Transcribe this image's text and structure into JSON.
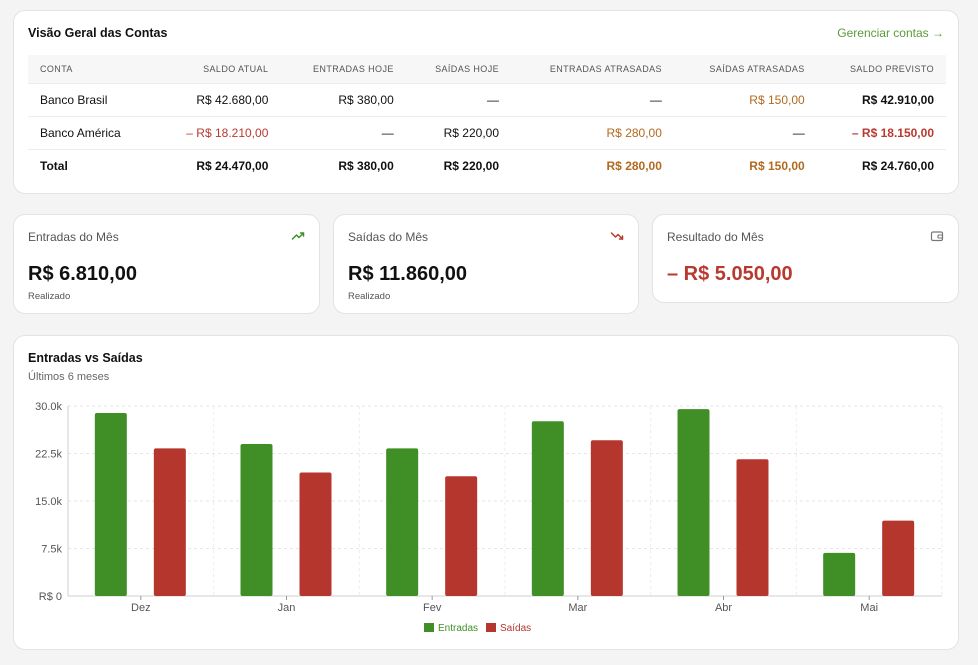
{
  "accounts": {
    "title": "Visão Geral das Contas",
    "manage_link": "Gerenciar contas →",
    "columns": [
      "CONTA",
      "SALDO ATUAL",
      "ENTRADAS HOJE",
      "SAÍDAS HOJE",
      "ENTRADAS ATRASADAS",
      "SAÍDAS ATRASADAS",
      "SALDO PREVISTO"
    ],
    "rows": [
      [
        "Banco Brasil",
        "R$ 42.680,00",
        "R$ 380,00",
        "—",
        "—",
        "R$ 150,00",
        "R$ 42.910,00"
      ],
      [
        "Banco América",
        "– R$ 18.210,00",
        "—",
        "R$ 220,00",
        "R$ 280,00",
        "—",
        "– R$ 18.150,00"
      ]
    ],
    "total": [
      "Total",
      "R$ 24.470,00",
      "R$ 380,00",
      "R$ 220,00",
      "R$ 280,00",
      "R$ 150,00",
      "R$ 24.760,00"
    ]
  },
  "kpis": {
    "income": {
      "label": "Entradas do Mês",
      "value": "R$ 6.810,00",
      "sub": "Realizado",
      "icon": "trending-up-icon",
      "color": "#3f8f26"
    },
    "expense": {
      "label": "Saídas do Mês",
      "value": "R$ 11.860,00",
      "sub": "Realizado",
      "icon": "trending-down-icon",
      "color": "#b83a2f"
    },
    "result": {
      "label": "Resultado do Mês",
      "value": "– R$ 5.050,00",
      "icon": "wallet-icon",
      "color": "#b83a2f"
    }
  },
  "chart": {
    "title": "Entradas vs Saídas",
    "subtitle": "Últimos 6 meses"
  },
  "colors": {
    "income": "#3f8f26",
    "expense": "#b5362c",
    "warn": "#b26a1f",
    "link": "#5a9a3c"
  },
  "chart_data": {
    "type": "bar",
    "categories": [
      "Dez",
      "Jan",
      "Fev",
      "Mar",
      "Abr",
      "Mai"
    ],
    "series": [
      {
        "name": "Entradas",
        "values": [
          28900,
          24000,
          23300,
          27600,
          29500,
          6800
        ]
      },
      {
        "name": "Saídas",
        "values": [
          23300,
          19500,
          18900,
          24600,
          21600,
          11900
        ]
      }
    ],
    "y_ticks": [
      "30.0k",
      "22.5k",
      "15.0k",
      "7.5k",
      "R$ 0"
    ],
    "y_tick_values": [
      30000,
      22500,
      15000,
      7500,
      0
    ],
    "ylim": [
      0,
      30000
    ],
    "grid": true,
    "legend": "bottom-center"
  }
}
